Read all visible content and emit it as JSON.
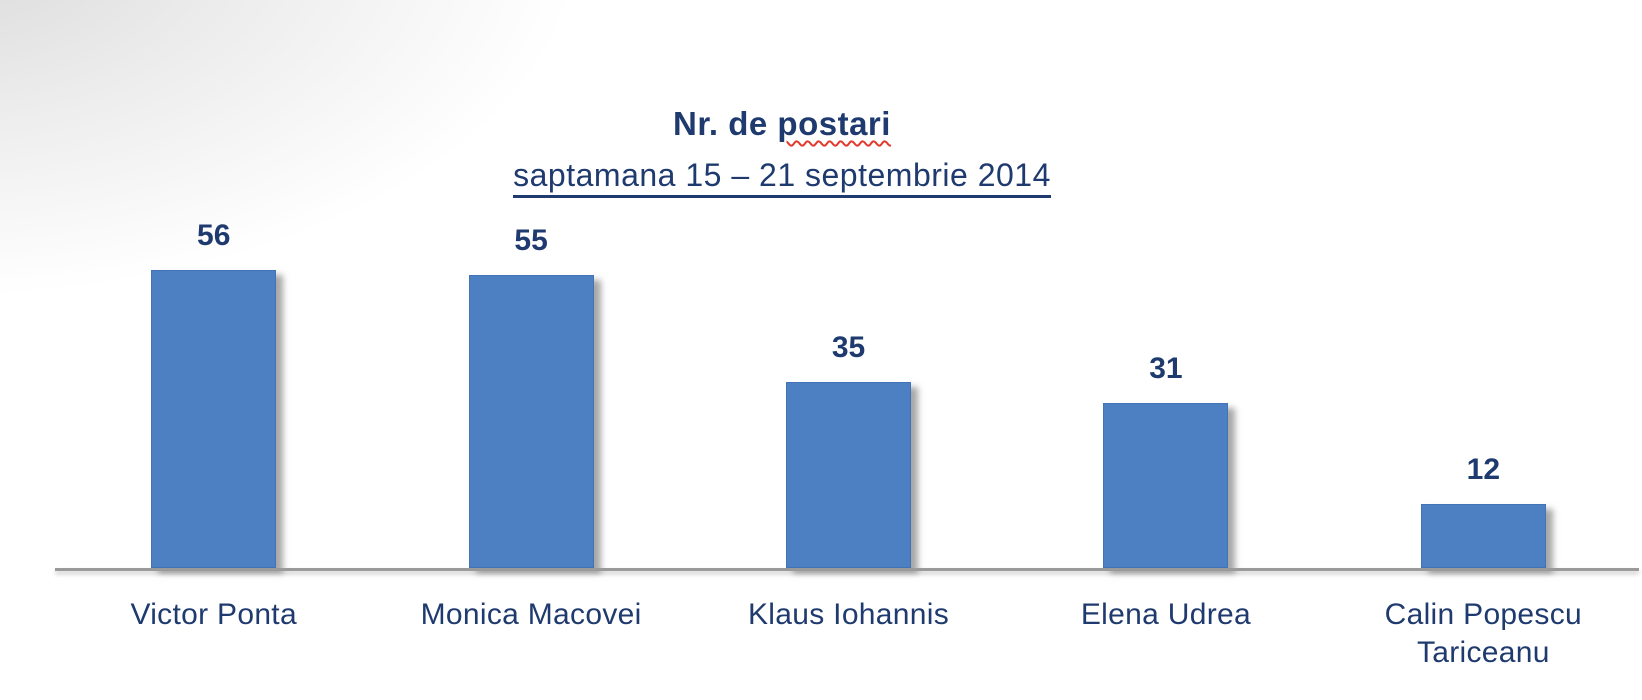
{
  "chart": {
    "title_prefix": "Nr. de ",
    "title_word_misspelled": "postari",
    "subtitle": "saptamana 15 – 21 septembrie 2014"
  },
  "chart_data": {
    "type": "bar",
    "title": "Nr. de postari",
    "subtitle": "saptamana 15 – 21 septembrie 2014",
    "categories": [
      "Victor Ponta",
      "Monica Macovei",
      "Klaus Iohannis",
      "Elena Udrea",
      "Calin Popescu Tariceanu"
    ],
    "values": [
      56,
      55,
      35,
      31,
      12
    ],
    "xlabel": "",
    "ylabel": "",
    "ylim": [
      0,
      60
    ],
    "grid": false,
    "legend": false,
    "data_labels": true,
    "bar_color": "#4d80c2",
    "text_color": "#1f3a6e",
    "axis_color": "#9a9a9a"
  }
}
